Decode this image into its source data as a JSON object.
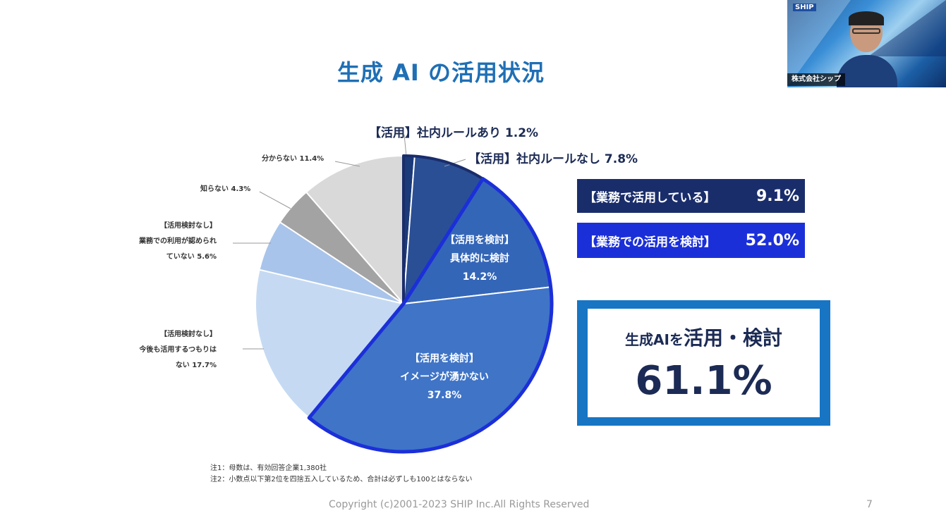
{
  "title": "生成 AI の活用状況",
  "chart_data": {
    "type": "pie",
    "slices": [
      {
        "label": "【活用】社内ルールあり",
        "value": 1.2,
        "color": "#1a3a7a"
      },
      {
        "label": "【活用】社内ルールなし",
        "value": 7.8,
        "color": "#2b4f95"
      },
      {
        "label": "【活用を検討】具体的に検討",
        "value": 14.2,
        "color": "#3466b8"
      },
      {
        "label": "【活用を検討】イメージが湧かない",
        "value": 37.8,
        "color": "#3f74c7"
      },
      {
        "label": "【活用検討なし】今後も活用するつもりはない",
        "value": 17.7,
        "color": "#c5daf2"
      },
      {
        "label": "【活用検討なし】業務での利用が認められていない",
        "value": 5.6,
        "color": "#a9c4ea"
      },
      {
        "label": "知らない",
        "value": 4.3,
        "color": "#a3a3a3"
      },
      {
        "label": "分からない",
        "value": 11.4,
        "color": "#d9d9d9"
      }
    ]
  },
  "labels": {
    "rule_yes": "【活用】社内ルールあり 1.2%",
    "rule_no": "【活用】社内ルールなし 7.8%",
    "concrete_1": "【活用を検討】",
    "concrete_2": "具体的に検討",
    "concrete_3": "14.2%",
    "image_1": "【活用を検討】",
    "image_2": "イメージが湧かない",
    "image_3": "37.8%",
    "none_future_1": "【活用検討なし】",
    "none_future_2": "今後も活用するつもりは",
    "none_future_3": "ない 17.7%",
    "none_allowed_1": "【活用検討なし】",
    "none_allowed_2": "業務での利用が認められ",
    "none_allowed_3": "ていない 5.6%",
    "unknown": "知らない 4.3%",
    "dontknow": "分からない 11.4%"
  },
  "summary": {
    "using_label": "【業務で活用している】",
    "using_value": "9.1%",
    "using_color": "#1a2d6b",
    "considering_label": "【業務での活用を検討】",
    "considering_value": "52.0%",
    "considering_color": "#1b2fd9",
    "big_head_small": "生成AIを",
    "big_head_large": "活用・検討",
    "big_value": "61.1%"
  },
  "notes": [
    "注1：母数は、有効回答企業1,380社",
    "注2：小数点以下第2位を四捨五入しているため、合計は必ずしも100とはならない"
  ],
  "footer": "Copyright (c)2001-2023 SHIP Inc.All Rights Reserved",
  "page_number": "7",
  "video": {
    "logo": "SHIP",
    "caption": "株式会社シップ"
  }
}
